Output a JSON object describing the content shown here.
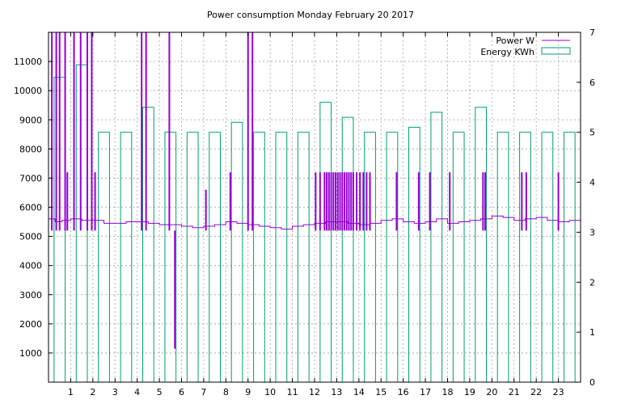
{
  "chart_data": {
    "type": "bar",
    "title": "Power consumption Monday February 20 2017",
    "xlabel": "",
    "ylabel": "",
    "xlim": [
      0,
      24
    ],
    "xticks": [
      "1",
      "2",
      "3",
      "4",
      "5",
      "6",
      "7",
      "8",
      "9",
      "10",
      "11",
      "12",
      "13",
      "14",
      "15",
      "16",
      "17",
      "18",
      "19",
      "20",
      "21",
      "22",
      "23"
    ],
    "ylim": [
      0,
      12000
    ],
    "yticks": [
      "1000",
      "2000",
      "3000",
      "4000",
      "5000",
      "6000",
      "7000",
      "8000",
      "9000",
      "10000",
      "11000"
    ],
    "y2lim": [
      0,
      7
    ],
    "y2ticks": [
      "0",
      "1",
      "2",
      "3",
      "4",
      "5",
      "6",
      "7"
    ],
    "grid": true,
    "legend_position": "top-right",
    "colors": {
      "power": "#9400d3",
      "energy": "#009e73",
      "grid": "#a0a0a0"
    },
    "series": [
      {
        "name": "Power W",
        "axis": "y1",
        "type": "line",
        "baseline": [
          [
            0,
            5600
          ],
          [
            0.3,
            5500
          ],
          [
            0.6,
            5550
          ],
          [
            1,
            5600
          ],
          [
            1.5,
            5550
          ],
          [
            2,
            5550
          ],
          [
            2.5,
            5450
          ],
          [
            3,
            5450
          ],
          [
            3.5,
            5500
          ],
          [
            4,
            5500
          ],
          [
            4.5,
            5450
          ],
          [
            5,
            5400
          ],
          [
            5.5,
            5400
          ],
          [
            6,
            5350
          ],
          [
            6.5,
            5300
          ],
          [
            7,
            5350
          ],
          [
            7.5,
            5400
          ],
          [
            8,
            5500
          ],
          [
            8.5,
            5450
          ],
          [
            9,
            5400
          ],
          [
            9.5,
            5350
          ],
          [
            10,
            5300
          ],
          [
            10.5,
            5250
          ],
          [
            11,
            5350
          ],
          [
            11.5,
            5400
          ],
          [
            12,
            5450
          ],
          [
            12.5,
            5500
          ],
          [
            13,
            5500
          ],
          [
            13.5,
            5450
          ],
          [
            14,
            5400
          ],
          [
            14.5,
            5450
          ],
          [
            15,
            5550
          ],
          [
            15.5,
            5600
          ],
          [
            16,
            5500
          ],
          [
            16.5,
            5450
          ],
          [
            17,
            5500
          ],
          [
            17.5,
            5600
          ],
          [
            18,
            5450
          ],
          [
            18.5,
            5500
          ],
          [
            19,
            5550
          ],
          [
            19.5,
            5600
          ],
          [
            20,
            5700
          ],
          [
            20.5,
            5650
          ],
          [
            21,
            5550
          ],
          [
            21.5,
            5600
          ],
          [
            22,
            5650
          ],
          [
            22.5,
            5550
          ],
          [
            23,
            5500
          ],
          [
            23.5,
            5550
          ],
          [
            24,
            5500
          ]
        ],
        "spikes": [
          {
            "x": 0.15,
            "y": 12000
          },
          {
            "x": 0.35,
            "y": 12000
          },
          {
            "x": 0.5,
            "y": 12000
          },
          {
            "x": 0.75,
            "y": 12000
          },
          {
            "x": 0.85,
            "y": 7200
          },
          {
            "x": 1.15,
            "y": 12000
          },
          {
            "x": 1.45,
            "y": 12000
          },
          {
            "x": 1.75,
            "y": 12000
          },
          {
            "x": 1.95,
            "y": 12000
          },
          {
            "x": 2.1,
            "y": 7200
          },
          {
            "x": 4.2,
            "y": 12000
          },
          {
            "x": 4.4,
            "y": 12000
          },
          {
            "x": 5.45,
            "y": 12000
          },
          {
            "x": 5.7,
            "y": 1150
          },
          {
            "x": 7.1,
            "y": 6600
          },
          {
            "x": 8.2,
            "y": 7200
          },
          {
            "x": 9.0,
            "y": 12000
          },
          {
            "x": 9.2,
            "y": 12000
          },
          {
            "x": 12.05,
            "y": 7200
          },
          {
            "x": 12.25,
            "y": 7200
          },
          {
            "x": 12.45,
            "y": 7200
          },
          {
            "x": 12.55,
            "y": 7200
          },
          {
            "x": 12.65,
            "y": 7200
          },
          {
            "x": 12.75,
            "y": 7200
          },
          {
            "x": 12.85,
            "y": 7200
          },
          {
            "x": 12.95,
            "y": 7200
          },
          {
            "x": 13.05,
            "y": 7200
          },
          {
            "x": 13.15,
            "y": 7200
          },
          {
            "x": 13.25,
            "y": 7200
          },
          {
            "x": 13.35,
            "y": 7200
          },
          {
            "x": 13.45,
            "y": 7200
          },
          {
            "x": 13.55,
            "y": 7200
          },
          {
            "x": 13.65,
            "y": 7200
          },
          {
            "x": 13.75,
            "y": 7200
          },
          {
            "x": 13.9,
            "y": 7200
          },
          {
            "x": 14.05,
            "y": 7200
          },
          {
            "x": 14.2,
            "y": 7200
          },
          {
            "x": 14.35,
            "y": 7200
          },
          {
            "x": 14.5,
            "y": 7200
          },
          {
            "x": 15.7,
            "y": 7200
          },
          {
            "x": 16.7,
            "y": 7200
          },
          {
            "x": 17.2,
            "y": 7200
          },
          {
            "x": 18.1,
            "y": 7200
          },
          {
            "x": 19.6,
            "y": 7200
          },
          {
            "x": 19.7,
            "y": 7200
          },
          {
            "x": 21.35,
            "y": 7200
          },
          {
            "x": 21.55,
            "y": 7200
          },
          {
            "x": 23.0,
            "y": 7200
          }
        ]
      },
      {
        "name": "Energy KWh",
        "axis": "y2",
        "type": "bar",
        "categories": [
          "0",
          "1",
          "2",
          "3",
          "4",
          "5",
          "6",
          "7",
          "8",
          "9",
          "10",
          "11",
          "12",
          "13",
          "14",
          "15",
          "16",
          "17",
          "18",
          "19",
          "20",
          "21",
          "22",
          "23"
        ],
        "values": [
          6.1,
          6.35,
          5.0,
          5.0,
          5.5,
          5.0,
          5.0,
          5.0,
          5.2,
          5.0,
          5.0,
          5.0,
          5.6,
          5.3,
          5.0,
          5.0,
          5.1,
          5.4,
          5.0,
          5.5,
          5.0,
          5.0,
          5.0,
          5.0
        ]
      }
    ]
  }
}
